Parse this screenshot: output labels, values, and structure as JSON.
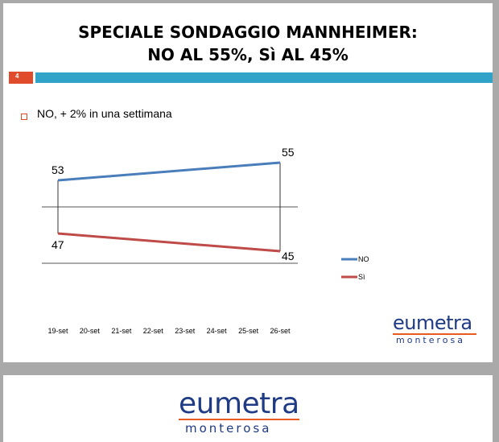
{
  "title": {
    "line1": "SPECIALE SONDAGGIO MANNHEIMER:",
    "line2": "NO AL 55%, Sì AL 45%"
  },
  "slide_number": "4",
  "bullet": "NO, + 2% in una settimana",
  "colors": {
    "accent_bar": "#31a3c8",
    "page_box": "#e04b2b",
    "no": "#4a7ebb",
    "si": "#be4b48",
    "logo_blue": "#1f3b86",
    "logo_orange": "#e85a20"
  },
  "chart_data": {
    "type": "line",
    "categories": [
      "19-set",
      "20-set",
      "21-set",
      "22-set",
      "23-set",
      "24-set",
      "25-set",
      "26-set"
    ],
    "series": [
      {
        "name": "NO",
        "color": "#4a7ebb",
        "start": 53,
        "end": 55,
        "labels": [
          "53",
          "55"
        ]
      },
      {
        "name": "Sì",
        "color": "#be4b48",
        "start": 47,
        "end": 45,
        "labels": [
          "47",
          "45"
        ]
      }
    ],
    "grid": true,
    "legend_position": "right"
  },
  "logo": {
    "main_a": "eu",
    "main_b": "metra",
    "sub": "monterosa"
  }
}
